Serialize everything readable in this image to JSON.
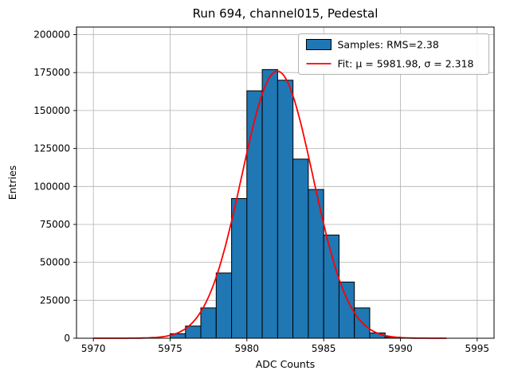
{
  "chart_data": {
    "type": "bar",
    "subtype": "histogram_with_gaussian_fit",
    "title": "Run 694, channel015, Pedestal",
    "xlabel": "ADC Counts",
    "ylabel": "Entries",
    "xlim": [
      5968.9,
      5996.1
    ],
    "ylim": [
      0,
      205000
    ],
    "xticks": [
      5970,
      5975,
      5980,
      5985,
      5990,
      5995
    ],
    "yticks": [
      0,
      25000,
      50000,
      75000,
      100000,
      125000,
      150000,
      175000,
      200000
    ],
    "grid": true,
    "grid_color": "#b0b0b0",
    "bar_color": "#1f77b4",
    "bar_edge_color": "#000000",
    "fit_color": "#ff0000",
    "bin_width": 1,
    "bins_left_edges": [
      5975,
      5976,
      5977,
      5978,
      5979,
      5980,
      5981,
      5982,
      5983,
      5984,
      5985,
      5986,
      5987,
      5988,
      5989
    ],
    "counts": [
      3000,
      8000,
      20000,
      43000,
      92000,
      163000,
      177000,
      170000,
      118000,
      98000,
      68000,
      37000,
      20000,
      3500,
      800
    ],
    "fit": {
      "mu": 5981.98,
      "sigma": 2.318,
      "amplitude": 176000,
      "x_range": [
        5970,
        5993
      ]
    },
    "legend": {
      "position": "upper-right",
      "entries": [
        {
          "type": "patch",
          "label": "Samples: RMS=2.38"
        },
        {
          "type": "line",
          "label": "Fit: μ = 5981.98, σ = 2.318"
        }
      ]
    }
  }
}
